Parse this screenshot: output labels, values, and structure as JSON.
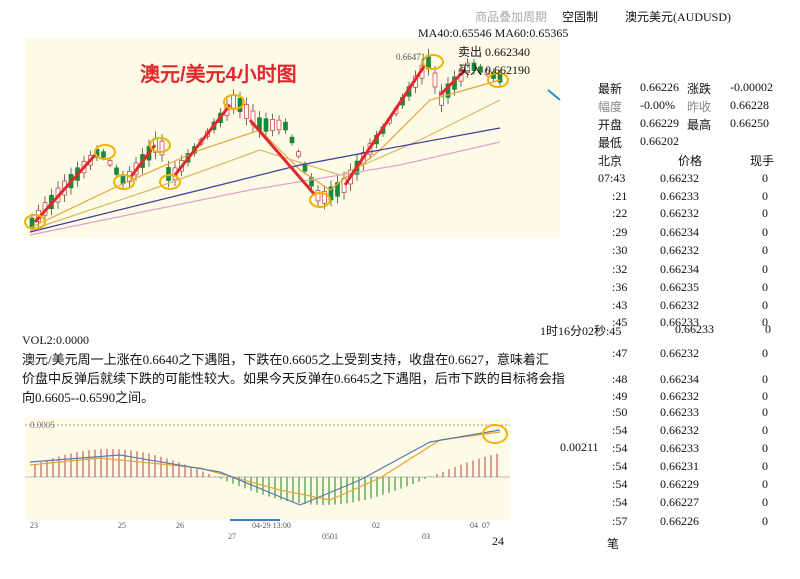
{
  "header": {
    "overlay": "商品叠加周期",
    "fixed": "空固制",
    "symbol": "澳元美元(AUDUSD)"
  },
  "ma": "MA40:0.65546 MA60:0.65365",
  "sell": "卖出 0.662340",
  "buy": "买入 0.662190",
  "top_chart": {
    "title": "澳元/美元4小时图",
    "high_label": "0.66471"
  },
  "quote": [
    [
      "最新",
      "0.66226",
      "涨跌",
      "-0.00002"
    ],
    [
      "幅度",
      "-0.00%",
      "昨收",
      "0.66228"
    ],
    [
      "开盘",
      "0.66229",
      "最高",
      "0.66250"
    ],
    [
      "最低",
      "0.66202"
    ]
  ],
  "trades_header": [
    "北京",
    "价格",
    "现手"
  ],
  "trades": [
    [
      "07:43",
      "0.66232",
      "0"
    ],
    [
      ":21",
      "0.66233",
      "0"
    ],
    [
      ":22",
      "0.66232",
      "0"
    ],
    [
      ":29",
      "0.66234",
      "0"
    ],
    [
      ":30",
      "0.66232",
      "0"
    ],
    [
      ":32",
      "0.66234",
      "0"
    ],
    [
      ":36",
      "0.66235",
      "0"
    ],
    [
      ":43",
      "0.66232",
      "0"
    ],
    [
      ":45",
      "0.66233",
      "0"
    ],
    [
      "1时16分02秒:45",
      "0.66233",
      "0"
    ],
    [
      ":47",
      "0.66232",
      "0"
    ],
    [
      ":48",
      "0.66234",
      "0"
    ],
    [
      ":49",
      "0.66232",
      "0"
    ],
    [
      ":50",
      "0.66233",
      "0"
    ],
    [
      ":54",
      "0.66232",
      "0"
    ],
    [
      ":54",
      "0.66233",
      "0"
    ],
    [
      ":54",
      "0.66231",
      "0"
    ],
    [
      ":54",
      "0.66229",
      "0"
    ],
    [
      ":54",
      "0.66227",
      "0"
    ],
    [
      ":57",
      "0.66226",
      "0"
    ]
  ],
  "side_value": "0.00211",
  "trades_footer": "笔",
  "vol": "VOL2:0.0000",
  "paragraph": [
    "澳元/美元周一上涨在0.6640之下遇阻，下跌在0.6605之上受到支持，收盘在0.6627，意味着汇",
    "价盘中反弹后就续下跌的可能性较大。如果今天反弹在0.6645之下遇阻，后市下跌的目标将会指",
    "向0.6605--0.6590之间。"
  ],
  "macd_chart": {
    "level": "0.0005",
    "dates": [
      "23",
      "25",
      "26",
      "27",
      "04-29 13:00",
      "0501",
      "02",
      "03",
      "04",
      "07"
    ]
  },
  "page_number": "24"
}
